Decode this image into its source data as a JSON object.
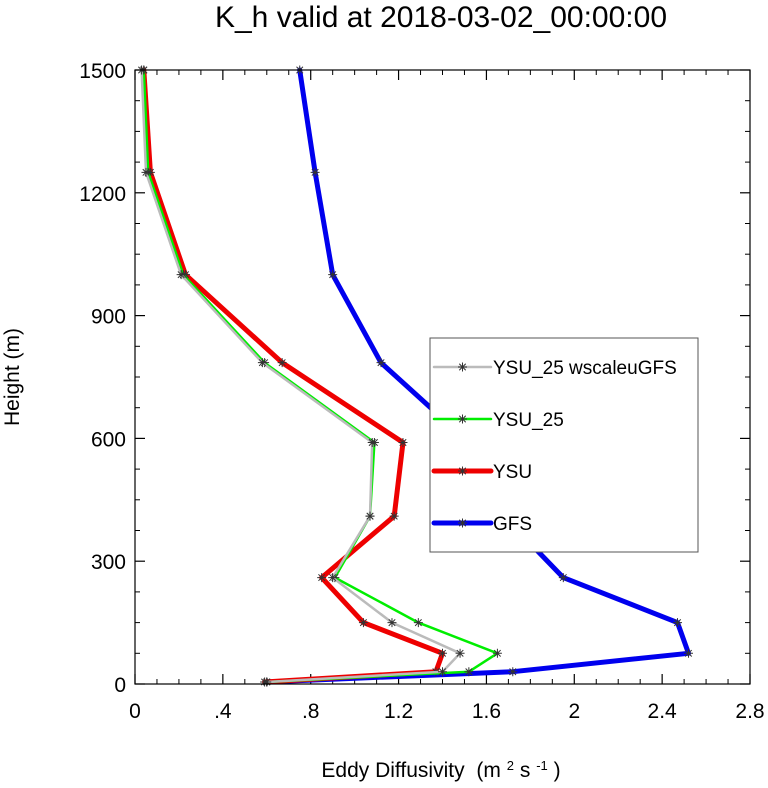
{
  "chart_data": {
    "type": "line",
    "title": "K_h valid at 2018-03-02_00:00:00",
    "xlabel": "Eddy Diffusivity",
    "xlabel_units": "(m",
    "xlabel_units_exp1": "2",
    "xlabel_units_mid": " s",
    "xlabel_units_exp2": "-1",
    "xlabel_units_end": ")",
    "ylabel": "Height (m)",
    "xlim": [
      0,
      2.8
    ],
    "ylim": [
      0,
      1500
    ],
    "x_ticks": [
      0,
      0.4,
      0.8,
      1.2,
      1.6,
      2.0,
      2.4,
      2.8
    ],
    "x_tick_labels": [
      "0",
      ".4",
      ".8",
      "1.2",
      "1.6",
      "2",
      "2.4",
      "2.8"
    ],
    "y_ticks": [
      0,
      300,
      600,
      900,
      1200,
      1500
    ],
    "y_tick_labels": [
      "0",
      "300",
      "600",
      "900",
      "1200",
      "1500"
    ],
    "grid": false,
    "legend_position": "right",
    "series": [
      {
        "name": "YSU_25 wscaleuGFS",
        "color": "#bbbbbb",
        "line_width": 2.5,
        "marker": "asterisk",
        "points": [
          [
            0.6,
            5
          ],
          [
            1.4,
            30
          ],
          [
            1.48,
            75
          ],
          [
            1.17,
            150
          ],
          [
            0.9,
            260
          ],
          [
            1.07,
            410
          ],
          [
            1.08,
            590
          ],
          [
            0.58,
            785
          ],
          [
            0.21,
            1000
          ],
          [
            0.05,
            1250
          ],
          [
            0.03,
            1500
          ]
        ]
      },
      {
        "name": "YSU_25",
        "color": "#00ee00",
        "line_width": 2.5,
        "marker": "asterisk",
        "points": [
          [
            0.6,
            5
          ],
          [
            1.52,
            30
          ],
          [
            1.65,
            75
          ],
          [
            1.29,
            150
          ],
          [
            0.91,
            260
          ],
          [
            1.07,
            410
          ],
          [
            1.09,
            590
          ],
          [
            0.59,
            785
          ],
          [
            0.22,
            1000
          ],
          [
            0.06,
            1250
          ],
          [
            0.04,
            1500
          ]
        ]
      },
      {
        "name": "YSU",
        "color": "#ee0000",
        "line_width": 5,
        "marker": "asterisk",
        "points": [
          [
            0.59,
            5
          ],
          [
            1.37,
            30
          ],
          [
            1.4,
            75
          ],
          [
            1.04,
            150
          ],
          [
            0.85,
            260
          ],
          [
            1.18,
            410
          ],
          [
            1.22,
            590
          ],
          [
            0.67,
            785
          ],
          [
            0.23,
            1000
          ],
          [
            0.07,
            1250
          ],
          [
            0.04,
            1500
          ]
        ]
      },
      {
        "name": "GFS",
        "color": "#0000ee",
        "line_width": 5,
        "marker": "asterisk",
        "points": [
          [
            0.6,
            5
          ],
          [
            1.72,
            30
          ],
          [
            2.52,
            75
          ],
          [
            2.47,
            150
          ],
          [
            1.95,
            260
          ],
          [
            1.68,
            410
          ],
          [
            1.52,
            590
          ],
          [
            1.12,
            785
          ],
          [
            0.9,
            1000
          ],
          [
            0.82,
            1250
          ],
          [
            0.75,
            1500
          ]
        ]
      }
    ]
  }
}
